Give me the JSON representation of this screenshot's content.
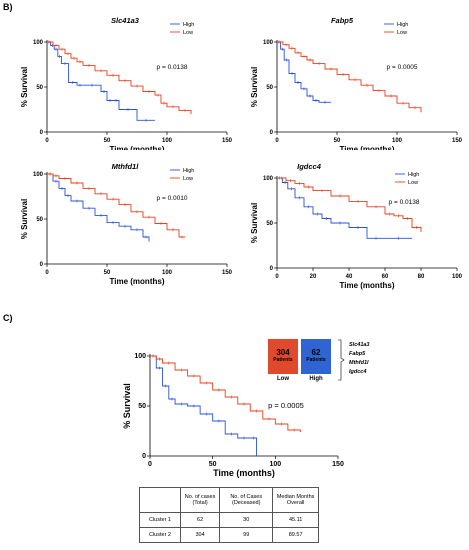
{
  "section_labels": {
    "b": "B)",
    "c": "C)"
  },
  "x_axis_label": "Time (months)",
  "y_axis_label": "% Survival",
  "chart_data": [
    {
      "type": "line",
      "title": "Slc41a3",
      "xlim": [
        0,
        150
      ],
      "ylim": [
        0,
        100
      ],
      "xticks": [
        0,
        50,
        100,
        150
      ],
      "yticks": [
        0,
        50,
        100
      ],
      "pvalue": "p = 0.0138",
      "legend_position": "top-right",
      "series": [
        {
          "name": "High",
          "color": "#2a52d9",
          "x": [
            0,
            3,
            6,
            9,
            12,
            18,
            25,
            30,
            45,
            50,
            55,
            60,
            75,
            90
          ],
          "y": [
            100,
            96,
            92,
            84,
            76,
            55,
            52,
            52,
            45,
            35,
            35,
            25,
            13,
            13
          ]
        },
        {
          "name": "Low",
          "color": "#e8401c",
          "x": [
            0,
            5,
            10,
            15,
            20,
            25,
            30,
            40,
            50,
            60,
            70,
            80,
            90,
            95,
            100,
            110,
            120
          ],
          "y": [
            100,
            96,
            92,
            87,
            82,
            78,
            74,
            68,
            63,
            57,
            51,
            45,
            41,
            32,
            28,
            24,
            20
          ]
        }
      ]
    },
    {
      "type": "line",
      "title": "Fabp5",
      "xlim": [
        0,
        150
      ],
      "ylim": [
        0,
        100
      ],
      "xticks": [
        0,
        50,
        100,
        150
      ],
      "yticks": [
        0,
        50,
        100
      ],
      "pvalue": "p = 0.0005",
      "legend_position": "top-right",
      "series": [
        {
          "name": "High",
          "color": "#2a52d9",
          "x": [
            0,
            3,
            6,
            10,
            15,
            20,
            25,
            30,
            35,
            45
          ],
          "y": [
            100,
            92,
            80,
            65,
            55,
            48,
            40,
            35,
            33,
            33
          ]
        },
        {
          "name": "Low",
          "color": "#e8401c",
          "x": [
            0,
            5,
            10,
            15,
            20,
            25,
            30,
            40,
            50,
            60,
            70,
            80,
            90,
            100,
            110,
            120
          ],
          "y": [
            100,
            97,
            93,
            88,
            84,
            80,
            76,
            70,
            64,
            58,
            52,
            46,
            40,
            32,
            27,
            22
          ]
        }
      ]
    },
    {
      "type": "line",
      "title": "Mthfd1l",
      "xlim": [
        0,
        150
      ],
      "ylim": [
        0,
        100
      ],
      "xticks": [
        0,
        50,
        100,
        150
      ],
      "yticks": [
        0,
        50,
        100
      ],
      "pvalue": "p = 0.0010",
      "legend_position": "top-right",
      "series": [
        {
          "name": "High",
          "color": "#2a52d9",
          "x": [
            0,
            5,
            10,
            15,
            20,
            30,
            40,
            50,
            60,
            70,
            80,
            85
          ],
          "y": [
            100,
            92,
            84,
            76,
            70,
            62,
            54,
            46,
            42,
            38,
            30,
            25
          ]
        },
        {
          "name": "Low",
          "color": "#e8401c",
          "x": [
            0,
            5,
            10,
            20,
            30,
            40,
            50,
            60,
            70,
            80,
            90,
            100,
            110,
            115
          ],
          "y": [
            100,
            98,
            95,
            90,
            84,
            78,
            72,
            66,
            58,
            52,
            45,
            38,
            30,
            30
          ]
        }
      ]
    },
    {
      "type": "line",
      "title": "Igdcc4",
      "xlim": [
        0,
        100
      ],
      "ylim": [
        0,
        100
      ],
      "xticks": [
        0,
        20,
        40,
        60,
        80,
        100
      ],
      "yticks": [
        0,
        50,
        100
      ],
      "pvalue": "p = 0.0138",
      "legend_position": "top-right",
      "series": [
        {
          "name": "High",
          "color": "#2a52d9",
          "x": [
            0,
            3,
            6,
            10,
            15,
            20,
            25,
            30,
            40,
            50,
            60,
            75
          ],
          "y": [
            100,
            95,
            88,
            78,
            68,
            60,
            55,
            50,
            45,
            33,
            33,
            33
          ]
        },
        {
          "name": "Low",
          "color": "#e8401c",
          "x": [
            0,
            5,
            10,
            15,
            20,
            30,
            40,
            50,
            60,
            65,
            70,
            75,
            80
          ],
          "y": [
            100,
            97,
            94,
            90,
            86,
            80,
            74,
            68,
            60,
            58,
            55,
            45,
            40
          ]
        }
      ]
    },
    {
      "type": "line",
      "title": "",
      "xlim": [
        0,
        150
      ],
      "ylim": [
        0,
        100
      ],
      "xticks": [
        0,
        50,
        100,
        150
      ],
      "yticks": [
        0,
        50,
        100
      ],
      "pvalue": "p = 0.0005",
      "series": [
        {
          "name": "",
          "color": "#2a52d9",
          "x": [
            0,
            5,
            10,
            15,
            20,
            30,
            40,
            50,
            60,
            70,
            80,
            85
          ],
          "y": [
            100,
            88,
            70,
            57,
            52,
            50,
            42,
            35,
            22,
            18,
            18,
            0
          ]
        },
        {
          "name": "",
          "color": "#e8401c",
          "x": [
            0,
            5,
            10,
            20,
            30,
            40,
            50,
            60,
            70,
            80,
            90,
            100,
            110,
            120
          ],
          "y": [
            100,
            97,
            93,
            86,
            80,
            73,
            66,
            59,
            52,
            45,
            37,
            32,
            26,
            24
          ]
        }
      ]
    }
  ],
  "clusters": {
    "low": {
      "count": "304",
      "unit": "Patients",
      "label": "Low",
      "color": "#e04a2c"
    },
    "high": {
      "count": "62",
      "unit": "Patients",
      "label": "High",
      "color": "#2f64d2"
    },
    "genes": [
      "Slc41a3",
      "Fabp5",
      "Mthfd1l",
      "Igdcc4"
    ]
  },
  "table": {
    "headers": [
      "",
      "No. of cases (Total)",
      "No. of Cases (Deceased)",
      "Median Months Overall"
    ],
    "rows": [
      [
        "Cluster 1",
        "62",
        "30",
        "45.11"
      ],
      [
        "Cluster 2",
        "304",
        "99",
        "89.57"
      ]
    ]
  }
}
